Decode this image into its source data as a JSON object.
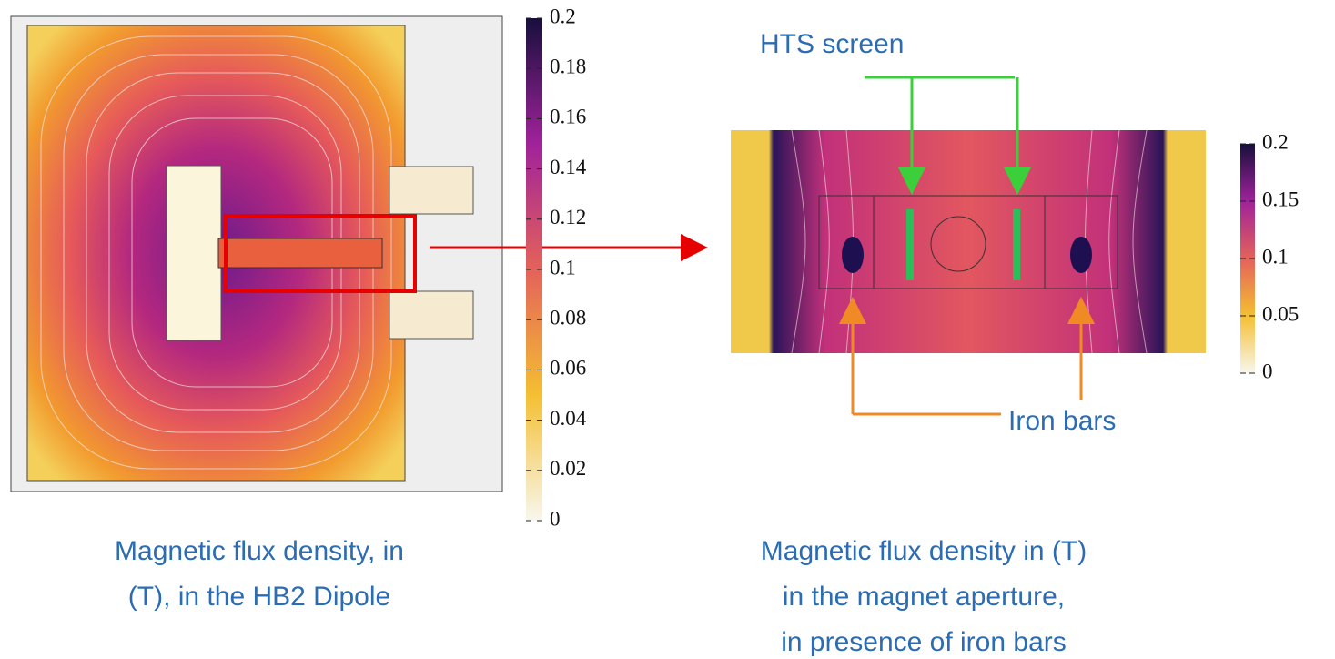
{
  "left_panel": {
    "colorbar": {
      "lim": [
        0,
        0.2
      ],
      "ticks": [
        0,
        0.02,
        0.04,
        0.06,
        0.08,
        0.1,
        0.12,
        0.14,
        0.16,
        0.18,
        0.2
      ]
    },
    "caption": [
      "Magnetic flux density, in",
      "(T), in the HB2 Dipole"
    ]
  },
  "right_panel": {
    "colorbar": {
      "lim": [
        0,
        0.2
      ],
      "ticks": [
        0,
        0.05,
        0.1,
        0.15,
        0.2
      ]
    },
    "caption": [
      "Magnetic flux density in (T)",
      "in the magnet aperture,",
      "in presence of iron bars"
    ],
    "annotations": {
      "hts_screen": "HTS screen",
      "iron_bars": "Iron bars"
    }
  }
}
